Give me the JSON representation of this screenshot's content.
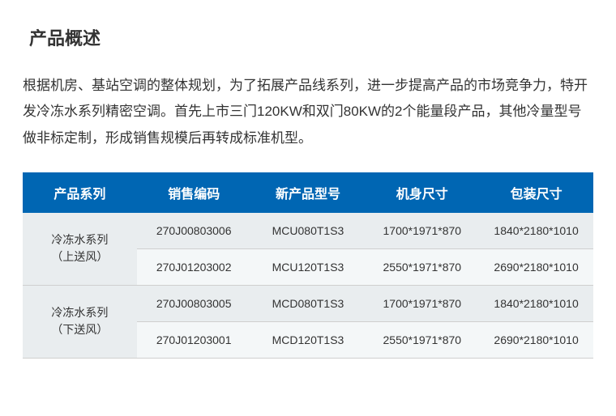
{
  "page": {
    "title": "产品概述",
    "description": "根据机房、基站空调的整体规划，为了拓展产品线系列，进一步提高产品的市场竞争力，特开发冷冻水系列精密空调。首先上市三门120KW和双门80KW的2个能量段产品，其他冷量型号做非标定制，形成销售规模后再转成标准机型。"
  },
  "table": {
    "columns": [
      "产品系列",
      "销售编码",
      "新产品型号",
      "机身尺寸",
      "包装尺寸"
    ],
    "groups": [
      {
        "series_line1": "冷冻水系列",
        "series_line2": "（上送风）",
        "rows": [
          {
            "code": "270J00803006",
            "model": "MCU080T1S3",
            "body": "1700*1971*870",
            "pack": "1840*2180*1010"
          },
          {
            "code": "270J01203002",
            "model": "MCU120T1S3",
            "body": "2550*1971*870",
            "pack": "2690*2180*1010"
          }
        ]
      },
      {
        "series_line1": "冷冻水系列",
        "series_line2": "（下送风）",
        "rows": [
          {
            "code": "270J00803005",
            "model": "MCD080T1S3",
            "body": "1700*1971*870",
            "pack": "1840*2180*1010"
          },
          {
            "code": "270J01203001",
            "model": "MCD120T1S3",
            "body": "2550*1971*870",
            "pack": "2690*2180*1010"
          }
        ]
      }
    ],
    "style": {
      "header_bg": "#0066b3",
      "header_fg": "#ffffff",
      "row_a_bg": "#e9edef",
      "row_b_bg": "#f4f7f8",
      "border_color": "#cfcfcf",
      "body_font_size": 14,
      "header_font_size": 16
    }
  }
}
